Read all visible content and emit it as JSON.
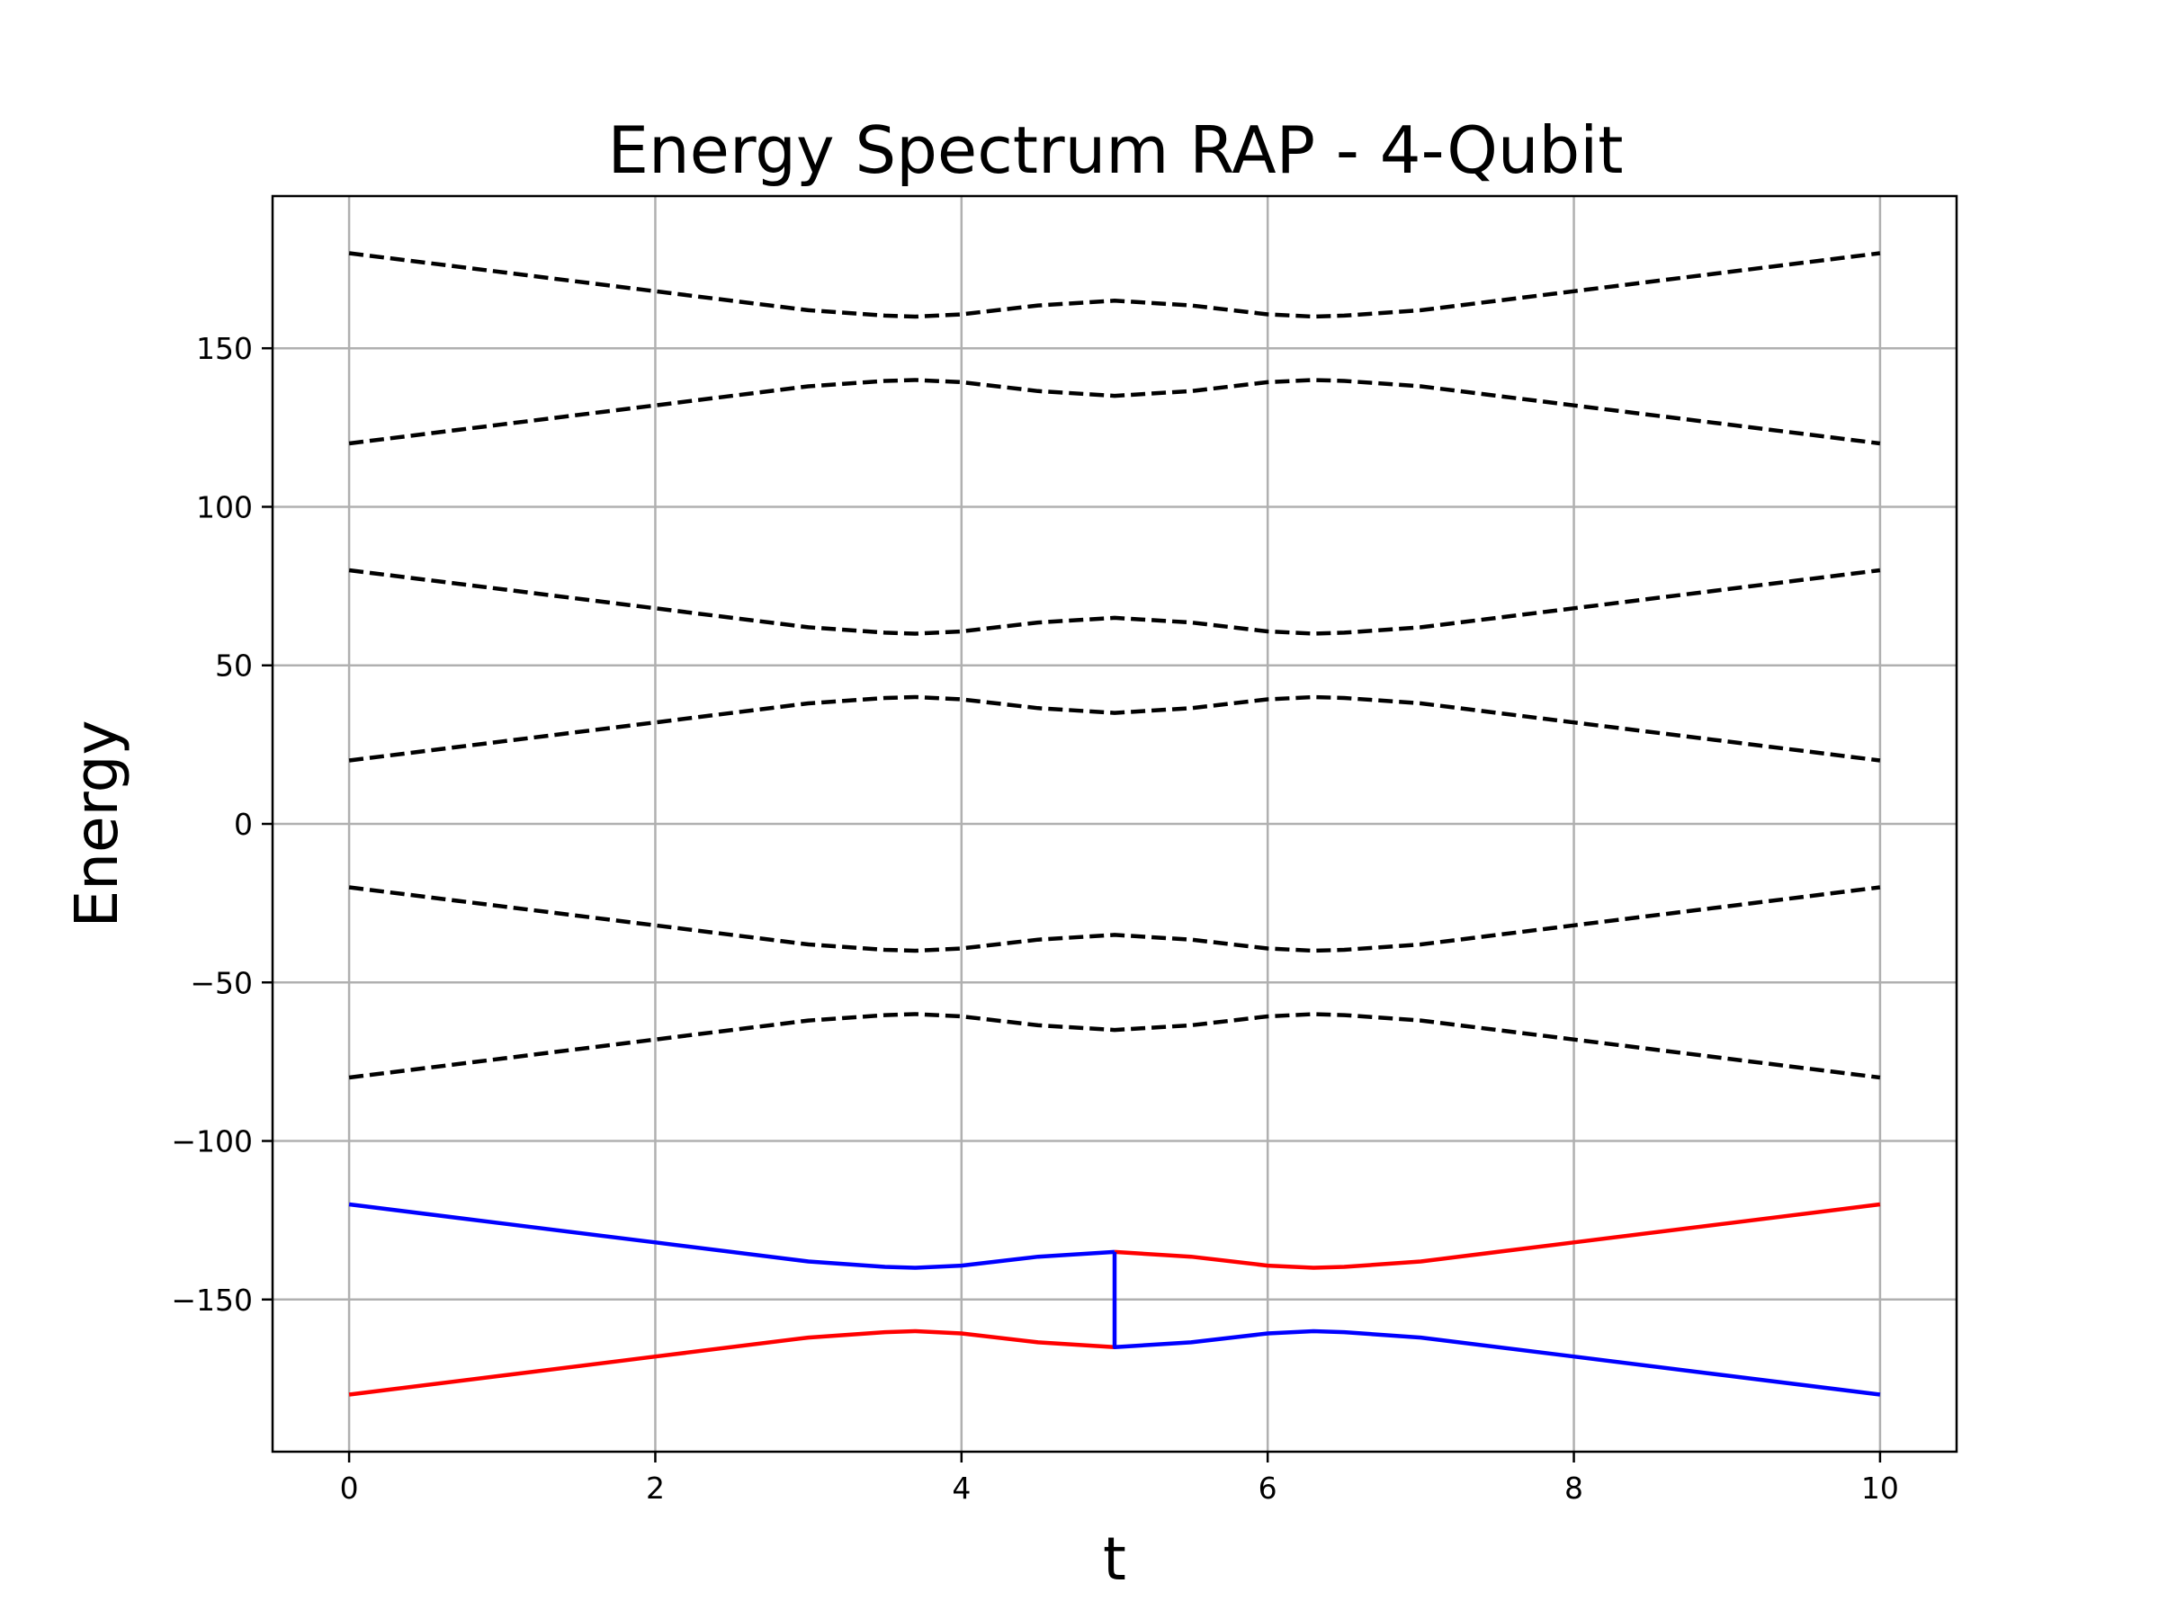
{
  "chart_data": {
    "type": "line",
    "title": "Energy Spectrum RAP - 4-Qubit",
    "xlabel": "t",
    "ylabel": "Energy",
    "xlim": [
      -0.5,
      10.5
    ],
    "ylim": [
      -198,
      198
    ],
    "xticks": [
      0,
      2,
      4,
      6,
      8,
      10
    ],
    "yticks": [
      -150,
      -100,
      -50,
      0,
      50,
      100,
      150
    ],
    "xtick_labels": [
      "0",
      "2",
      "4",
      "6",
      "8",
      "10"
    ],
    "ytick_labels": [
      "−150",
      "−100",
      "−50",
      "0",
      "50",
      "100",
      "150"
    ],
    "grid": true,
    "legend": "none",
    "series": [
      {
        "style": "dashed",
        "color": "#000000",
        "x": [
          0,
          1,
          2,
          3,
          3.5,
          3.7,
          4,
          4.5,
          5,
          5.5,
          6,
          6.3,
          6.5,
          7,
          8,
          9,
          10
        ],
        "y": [
          180,
          174,
          168,
          162,
          160.3,
          160,
          160.7,
          163.5,
          165,
          163.5,
          160.7,
          160,
          160.3,
          162,
          168,
          174,
          180
        ]
      },
      {
        "style": "dashed",
        "color": "#000000",
        "x": [
          0,
          1,
          2,
          3,
          3.5,
          3.7,
          4,
          4.5,
          5,
          5.5,
          6,
          6.3,
          6.5,
          7,
          8,
          9,
          10
        ],
        "y": [
          120,
          126,
          132,
          138,
          139.7,
          140,
          139.3,
          136.5,
          135,
          136.5,
          139.3,
          140,
          139.7,
          138,
          132,
          126,
          120
        ]
      },
      {
        "style": "dashed",
        "color": "#000000",
        "x": [
          0,
          1,
          2,
          3,
          3.5,
          3.7,
          4,
          4.5,
          5,
          5.5,
          6,
          6.3,
          6.5,
          7,
          8,
          9,
          10
        ],
        "y": [
          80,
          74,
          68,
          62,
          60.3,
          60,
          60.7,
          63.5,
          65,
          63.5,
          60.7,
          60,
          60.3,
          62,
          68,
          74,
          80
        ]
      },
      {
        "style": "dashed",
        "color": "#000000",
        "x": [
          0,
          1,
          2,
          3,
          3.5,
          3.7,
          4,
          4.5,
          5,
          5.5,
          6,
          6.3,
          6.5,
          7,
          8,
          9,
          10
        ],
        "y": [
          20,
          26,
          32,
          38,
          39.7,
          40,
          39.3,
          36.5,
          35,
          36.5,
          39.3,
          40,
          39.7,
          38,
          32,
          26,
          20
        ]
      },
      {
        "style": "dashed",
        "color": "#000000",
        "x": [
          0,
          1,
          2,
          3,
          3.5,
          3.7,
          4,
          4.5,
          5,
          5.5,
          6,
          6.3,
          6.5,
          7,
          8,
          9,
          10
        ],
        "y": [
          -20,
          -26,
          -32,
          -38,
          -39.7,
          -40,
          -39.3,
          -36.5,
          -35,
          -36.5,
          -39.3,
          -40,
          -39.7,
          -38,
          -32,
          -26,
          -20
        ]
      },
      {
        "style": "dashed",
        "color": "#000000",
        "x": [
          0,
          1,
          2,
          3,
          3.5,
          3.7,
          4,
          4.5,
          5,
          5.5,
          6,
          6.3,
          6.5,
          7,
          8,
          9,
          10
        ],
        "y": [
          -80,
          -74,
          -68,
          -62,
          -60.3,
          -60,
          -60.7,
          -63.5,
          -65,
          -63.5,
          -60.7,
          -60,
          -60.3,
          -62,
          -68,
          -74,
          -80
        ]
      },
      {
        "style": "solid",
        "color": "#0000ff",
        "x": [
          0,
          1,
          2,
          3,
          3.5,
          3.7,
          4,
          4.5,
          5
        ],
        "y": [
          -120,
          -126,
          -132,
          -138,
          -139.7,
          -140,
          -139.3,
          -136.5,
          -135
        ]
      },
      {
        "style": "solid",
        "color": "#ff0000",
        "x": [
          5,
          5.5,
          6,
          6.3,
          6.5,
          7,
          8,
          9,
          10
        ],
        "y": [
          -135,
          -136.5,
          -139.3,
          -140,
          -139.7,
          -138,
          -132,
          -126,
          -120
        ]
      },
      {
        "style": "solid",
        "color": "#ff0000",
        "x": [
          0,
          1,
          2,
          3,
          3.5,
          3.7,
          4,
          4.5,
          5
        ],
        "y": [
          -180,
          -174,
          -168,
          -162,
          -160.3,
          -160,
          -160.7,
          -163.5,
          -165
        ]
      },
      {
        "style": "solid",
        "color": "#0000ff",
        "x": [
          5,
          5,
          5.5,
          6,
          6.3,
          6.5,
          7,
          8,
          9,
          10
        ],
        "y": [
          -135,
          -165,
          -163.5,
          -160.7,
          -160,
          -160.3,
          -162,
          -168,
          -174,
          -180
        ]
      }
    ]
  }
}
